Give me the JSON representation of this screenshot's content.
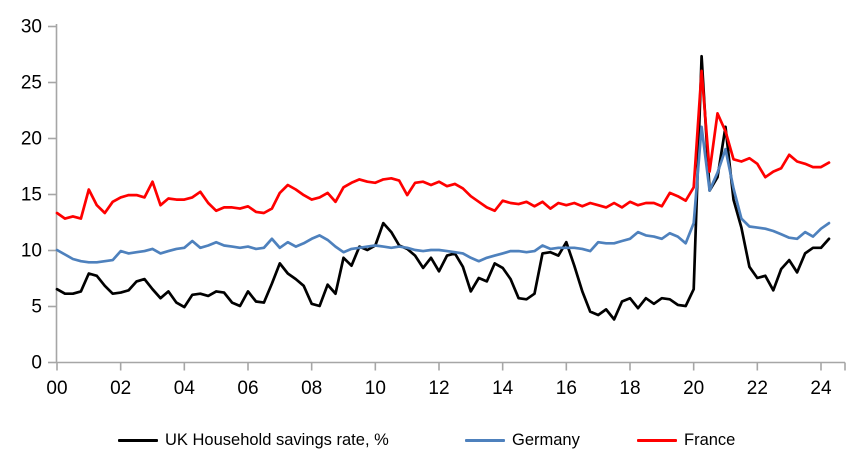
{
  "chart_data": {
    "type": "line",
    "title": "",
    "xlabel": "",
    "ylabel": "",
    "x_tick_labels": [
      "00",
      "02",
      "04",
      "06",
      "08",
      "10",
      "12",
      "14",
      "16",
      "18",
      "20",
      "22",
      "24"
    ],
    "x_tick_years": [
      0,
      2,
      4,
      6,
      8,
      10,
      12,
      14,
      16,
      18,
      20,
      22,
      24
    ],
    "y_ticks": [
      0,
      5,
      10,
      15,
      20,
      25,
      30
    ],
    "ylim": [
      0,
      30
    ],
    "x_range_years": [
      2000,
      2024.25
    ],
    "frequency": "quarterly",
    "grid": false,
    "legend_position": "bottom",
    "axis_color": "#A6A6A6",
    "label_color": "#000000",
    "series": [
      {
        "name": "UK Household savings rate, %",
        "color": "#000000",
        "values": [
          6.5,
          6.1,
          6.1,
          6.3,
          7.9,
          7.7,
          6.8,
          6.1,
          6.2,
          6.4,
          7.2,
          7.4,
          6.5,
          5.7,
          6.3,
          5.3,
          4.9,
          6.0,
          6.1,
          5.9,
          6.3,
          6.2,
          5.3,
          5.0,
          6.3,
          5.4,
          5.3,
          7.0,
          8.8,
          7.9,
          7.4,
          6.8,
          5.2,
          5.0,
          6.9,
          6.1,
          9.3,
          8.6,
          10.3,
          10.0,
          10.4,
          12.4,
          11.6,
          10.4,
          10.1,
          9.5,
          8.4,
          9.3,
          8.1,
          9.5,
          9.7,
          8.5,
          6.3,
          7.5,
          7.2,
          8.8,
          8.4,
          7.4,
          5.7,
          5.6,
          6.1,
          9.7,
          9.8,
          9.5,
          10.7,
          8.6,
          6.3,
          4.5,
          4.2,
          4.7,
          3.8,
          5.4,
          5.7,
          4.8,
          5.7,
          5.2,
          5.7,
          5.6,
          5.1,
          5.0,
          6.5,
          27.3,
          15.3,
          16.5,
          21.0,
          14.5,
          12.0,
          8.5,
          7.5,
          7.7,
          6.4,
          8.3,
          9.1,
          8.0,
          9.7,
          10.2,
          10.2,
          11.0
        ]
      },
      {
        "name": "Germany",
        "color": "#4E81BD",
        "values": [
          10.0,
          9.6,
          9.2,
          9.0,
          8.9,
          8.9,
          9.0,
          9.1,
          9.9,
          9.7,
          9.8,
          9.9,
          10.1,
          9.7,
          9.9,
          10.1,
          10.2,
          10.8,
          10.2,
          10.4,
          10.7,
          10.4,
          10.3,
          10.2,
          10.3,
          10.1,
          10.2,
          11.0,
          10.2,
          10.7,
          10.3,
          10.6,
          11.0,
          11.3,
          10.9,
          10.3,
          9.8,
          10.1,
          10.2,
          10.3,
          10.4,
          10.3,
          10.2,
          10.3,
          10.2,
          10.0,
          9.9,
          10.0,
          10.0,
          9.9,
          9.8,
          9.7,
          9.3,
          9.0,
          9.3,
          9.5,
          9.7,
          9.9,
          9.9,
          9.8,
          9.9,
          10.4,
          10.1,
          10.2,
          10.2,
          10.2,
          10.1,
          9.9,
          10.7,
          10.6,
          10.6,
          10.8,
          11.0,
          11.6,
          11.3,
          11.2,
          11.0,
          11.5,
          11.2,
          10.6,
          12.4,
          21.0,
          15.3,
          16.9,
          19.0,
          15.5,
          12.8,
          12.1,
          12.0,
          11.9,
          11.7,
          11.4,
          11.1,
          11.0,
          11.6,
          11.2,
          11.9,
          12.4
        ]
      },
      {
        "name": "France",
        "color": "#FF0000",
        "values": [
          13.3,
          12.8,
          13.0,
          12.8,
          15.4,
          14.0,
          13.3,
          14.3,
          14.7,
          14.9,
          14.9,
          14.7,
          16.1,
          14.0,
          14.6,
          14.5,
          14.5,
          14.7,
          15.2,
          14.2,
          13.5,
          13.8,
          13.8,
          13.7,
          13.9,
          13.4,
          13.3,
          13.7,
          15.1,
          15.8,
          15.4,
          14.9,
          14.5,
          14.7,
          15.1,
          14.3,
          15.6,
          16.0,
          16.3,
          16.1,
          16.0,
          16.3,
          16.4,
          16.2,
          14.9,
          16.0,
          16.1,
          15.8,
          16.1,
          15.7,
          15.9,
          15.5,
          14.8,
          14.3,
          13.8,
          13.5,
          14.4,
          14.2,
          14.1,
          14.3,
          13.9,
          14.3,
          13.7,
          14.2,
          14.0,
          14.2,
          13.9,
          14.2,
          14.0,
          13.8,
          14.2,
          13.8,
          14.3,
          14.0,
          14.2,
          14.2,
          13.9,
          15.1,
          14.8,
          14.4,
          15.6,
          26.0,
          17.0,
          22.2,
          20.6,
          18.1,
          17.9,
          18.2,
          17.7,
          16.5,
          17.0,
          17.3,
          18.5,
          17.9,
          17.7,
          17.4,
          17.4,
          17.8
        ]
      }
    ]
  },
  "legend": {
    "items": [
      {
        "label": "UK Household savings rate, %"
      },
      {
        "label": "Germany"
      },
      {
        "label": "France"
      }
    ]
  }
}
